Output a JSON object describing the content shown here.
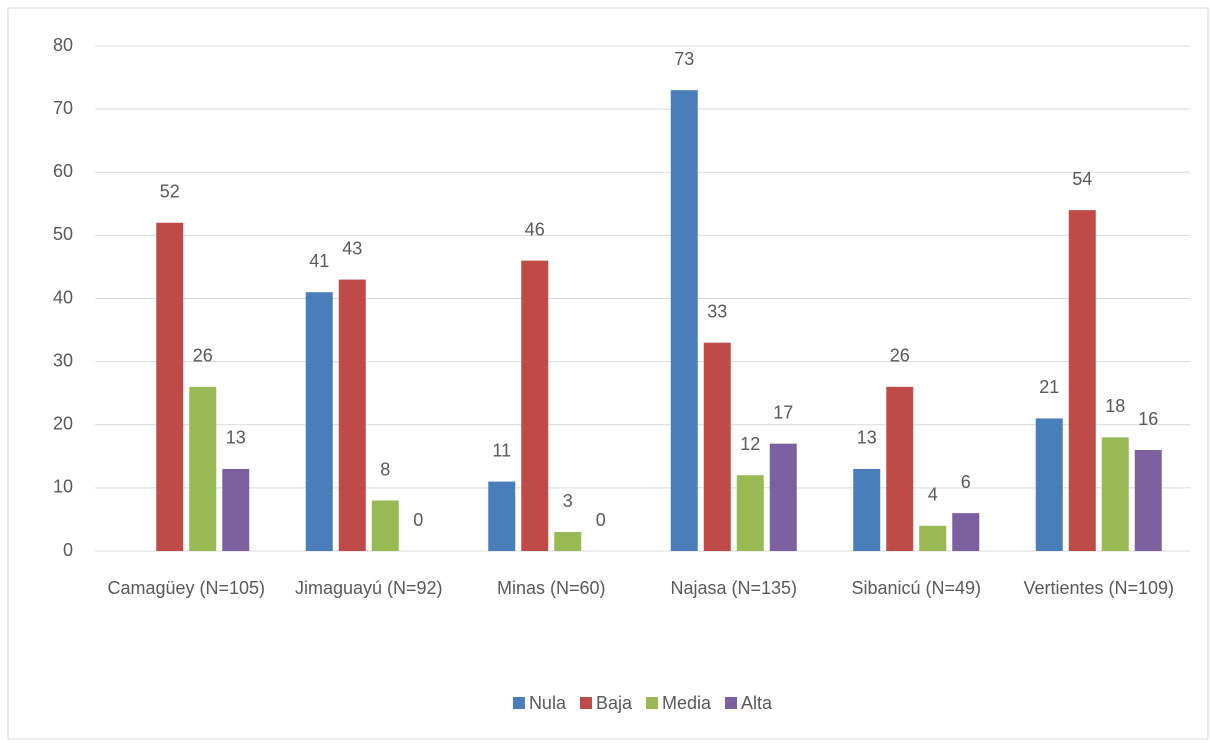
{
  "chart_data": {
    "type": "bar",
    "categories": [
      "Camagüey (N=105)",
      "Jimaguayú (N=92)",
      "Minas (N=60)",
      "Najasa (N=135)",
      "Sibanicú (N=49)",
      "Vertientes (N=109)"
    ],
    "series": [
      {
        "name": "Nula",
        "color": "#4a7ebb",
        "values": [
          null,
          41,
          11,
          73,
          13,
          21
        ]
      },
      {
        "name": "Baja",
        "color": "#be4b48",
        "values": [
          52,
          43,
          46,
          33,
          26,
          54
        ]
      },
      {
        "name": "Media",
        "color": "#98b954",
        "values": [
          26,
          8,
          3,
          12,
          4,
          18
        ]
      },
      {
        "name": "Alta",
        "color": "#7d60a0",
        "values": [
          13,
          0,
          0,
          17,
          6,
          16
        ]
      }
    ],
    "ylim": [
      0,
      80
    ],
    "yticks": [
      0,
      10,
      20,
      30,
      40,
      50,
      60,
      70,
      80
    ],
    "grid": true,
    "legend": "bottom"
  }
}
